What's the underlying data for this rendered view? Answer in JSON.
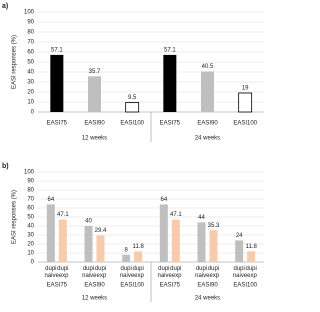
{
  "chart_data": [
    {
      "type": "bar",
      "label": "a)",
      "ylabel": "EASI responses (%)",
      "categories": [
        "EASI75",
        "EASI90",
        "EASI100",
        "EASI75",
        "EASI90",
        "EASI100"
      ],
      "values": [
        57.1,
        35.7,
        9.5,
        57.1,
        40.5,
        19
      ],
      "colors": [
        "#000000",
        "#bfbfbf",
        "#ffffff",
        "#000000",
        "#bfbfbf",
        "#ffffff"
      ],
      "groups": [
        "12 weeks",
        "24 weeks"
      ],
      "ylim": [
        0,
        100
      ],
      "yticks": [
        0,
        10,
        20,
        30,
        40,
        50,
        60,
        70,
        80,
        90,
        100
      ],
      "grid": true
    },
    {
      "type": "grouped_bar",
      "label": "b)",
      "ylabel": "EASI responses (%)",
      "categories": [
        "EASI75",
        "EASI90",
        "EASI100",
        "EASI75",
        "EASI90",
        "EASI100"
      ],
      "series": [
        {
          "name": "dupi naive",
          "color": "#bfbfbf",
          "values": [
            64,
            40,
            8,
            64,
            44,
            24
          ]
        },
        {
          "name": "dupi exp",
          "color": "#f8cbad",
          "values": [
            47.1,
            29.4,
            11.8,
            47.1,
            35.3,
            11.8
          ]
        }
      ],
      "groups": [
        "12 weeks",
        "24 weeks"
      ],
      "ylim": [
        0,
        100
      ],
      "yticks": [
        0,
        10,
        20,
        30,
        40,
        50,
        60,
        70,
        80,
        90,
        100
      ],
      "grid": true
    }
  ]
}
